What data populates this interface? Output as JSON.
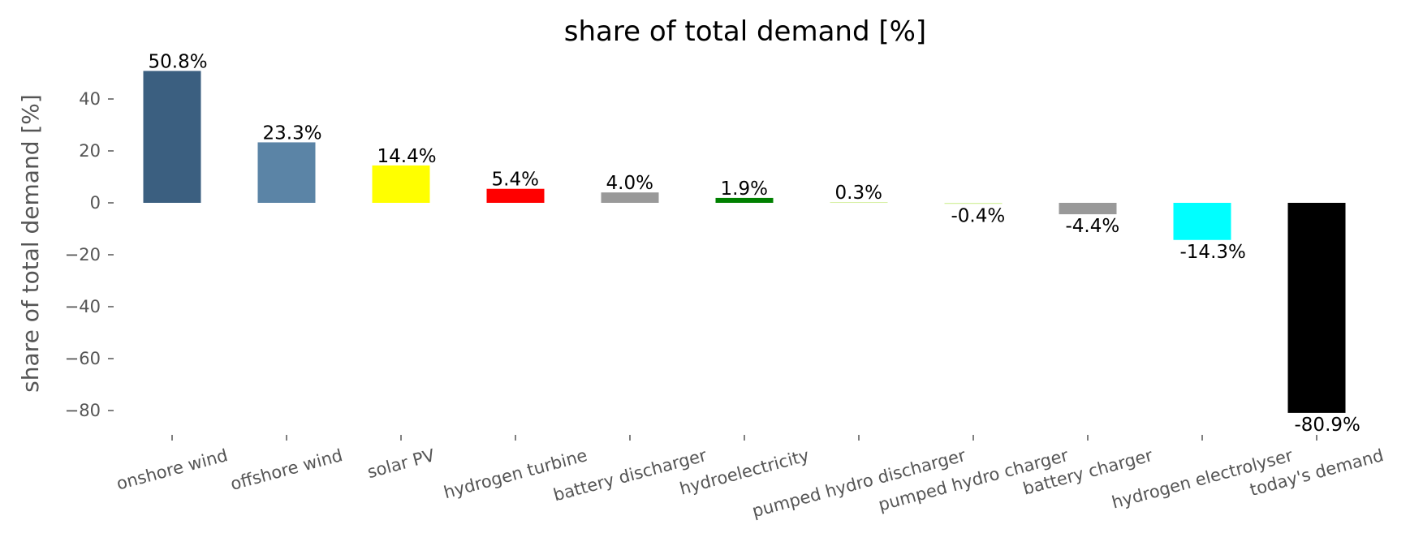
{
  "chart_data": {
    "type": "bar",
    "title": "share of total demand [%]",
    "xlabel": "",
    "ylabel": "share of total demand [%]",
    "ylim": [
      -87,
      53
    ],
    "yticks": [
      40,
      20,
      0,
      -20,
      -40,
      -60,
      -80
    ],
    "ytick_labels": [
      "40",
      "20",
      "0",
      "−20",
      "−40",
      "−60",
      "−80"
    ],
    "grid": false,
    "categories": [
      "onshore wind",
      "offshore wind",
      "solar PV",
      "hydrogen turbine",
      "battery discharger",
      "hydroelectricity",
      "pumped hydro discharger",
      "pumped hydro charger",
      "battery charger",
      "hydrogen electrolyser",
      "today's demand"
    ],
    "values": [
      50.8,
      23.3,
      14.4,
      5.4,
      4.0,
      1.9,
      0.3,
      -0.4,
      -4.4,
      -14.3,
      -80.9
    ],
    "data_labels": [
      "50.8%",
      "23.3%",
      "14.4%",
      "5.4%",
      "4.0%",
      "1.9%",
      "0.3%",
      "-0.4%",
      "-4.4%",
      "-14.3%",
      "-80.9%"
    ],
    "colors": [
      "#3b5f80",
      "#5b84a6",
      "#ffff00",
      "#ff0000",
      "#999999",
      "#008000",
      "#d4f0a0",
      "#d4f0a0",
      "#999999",
      "#00ffff",
      "#000000"
    ]
  }
}
